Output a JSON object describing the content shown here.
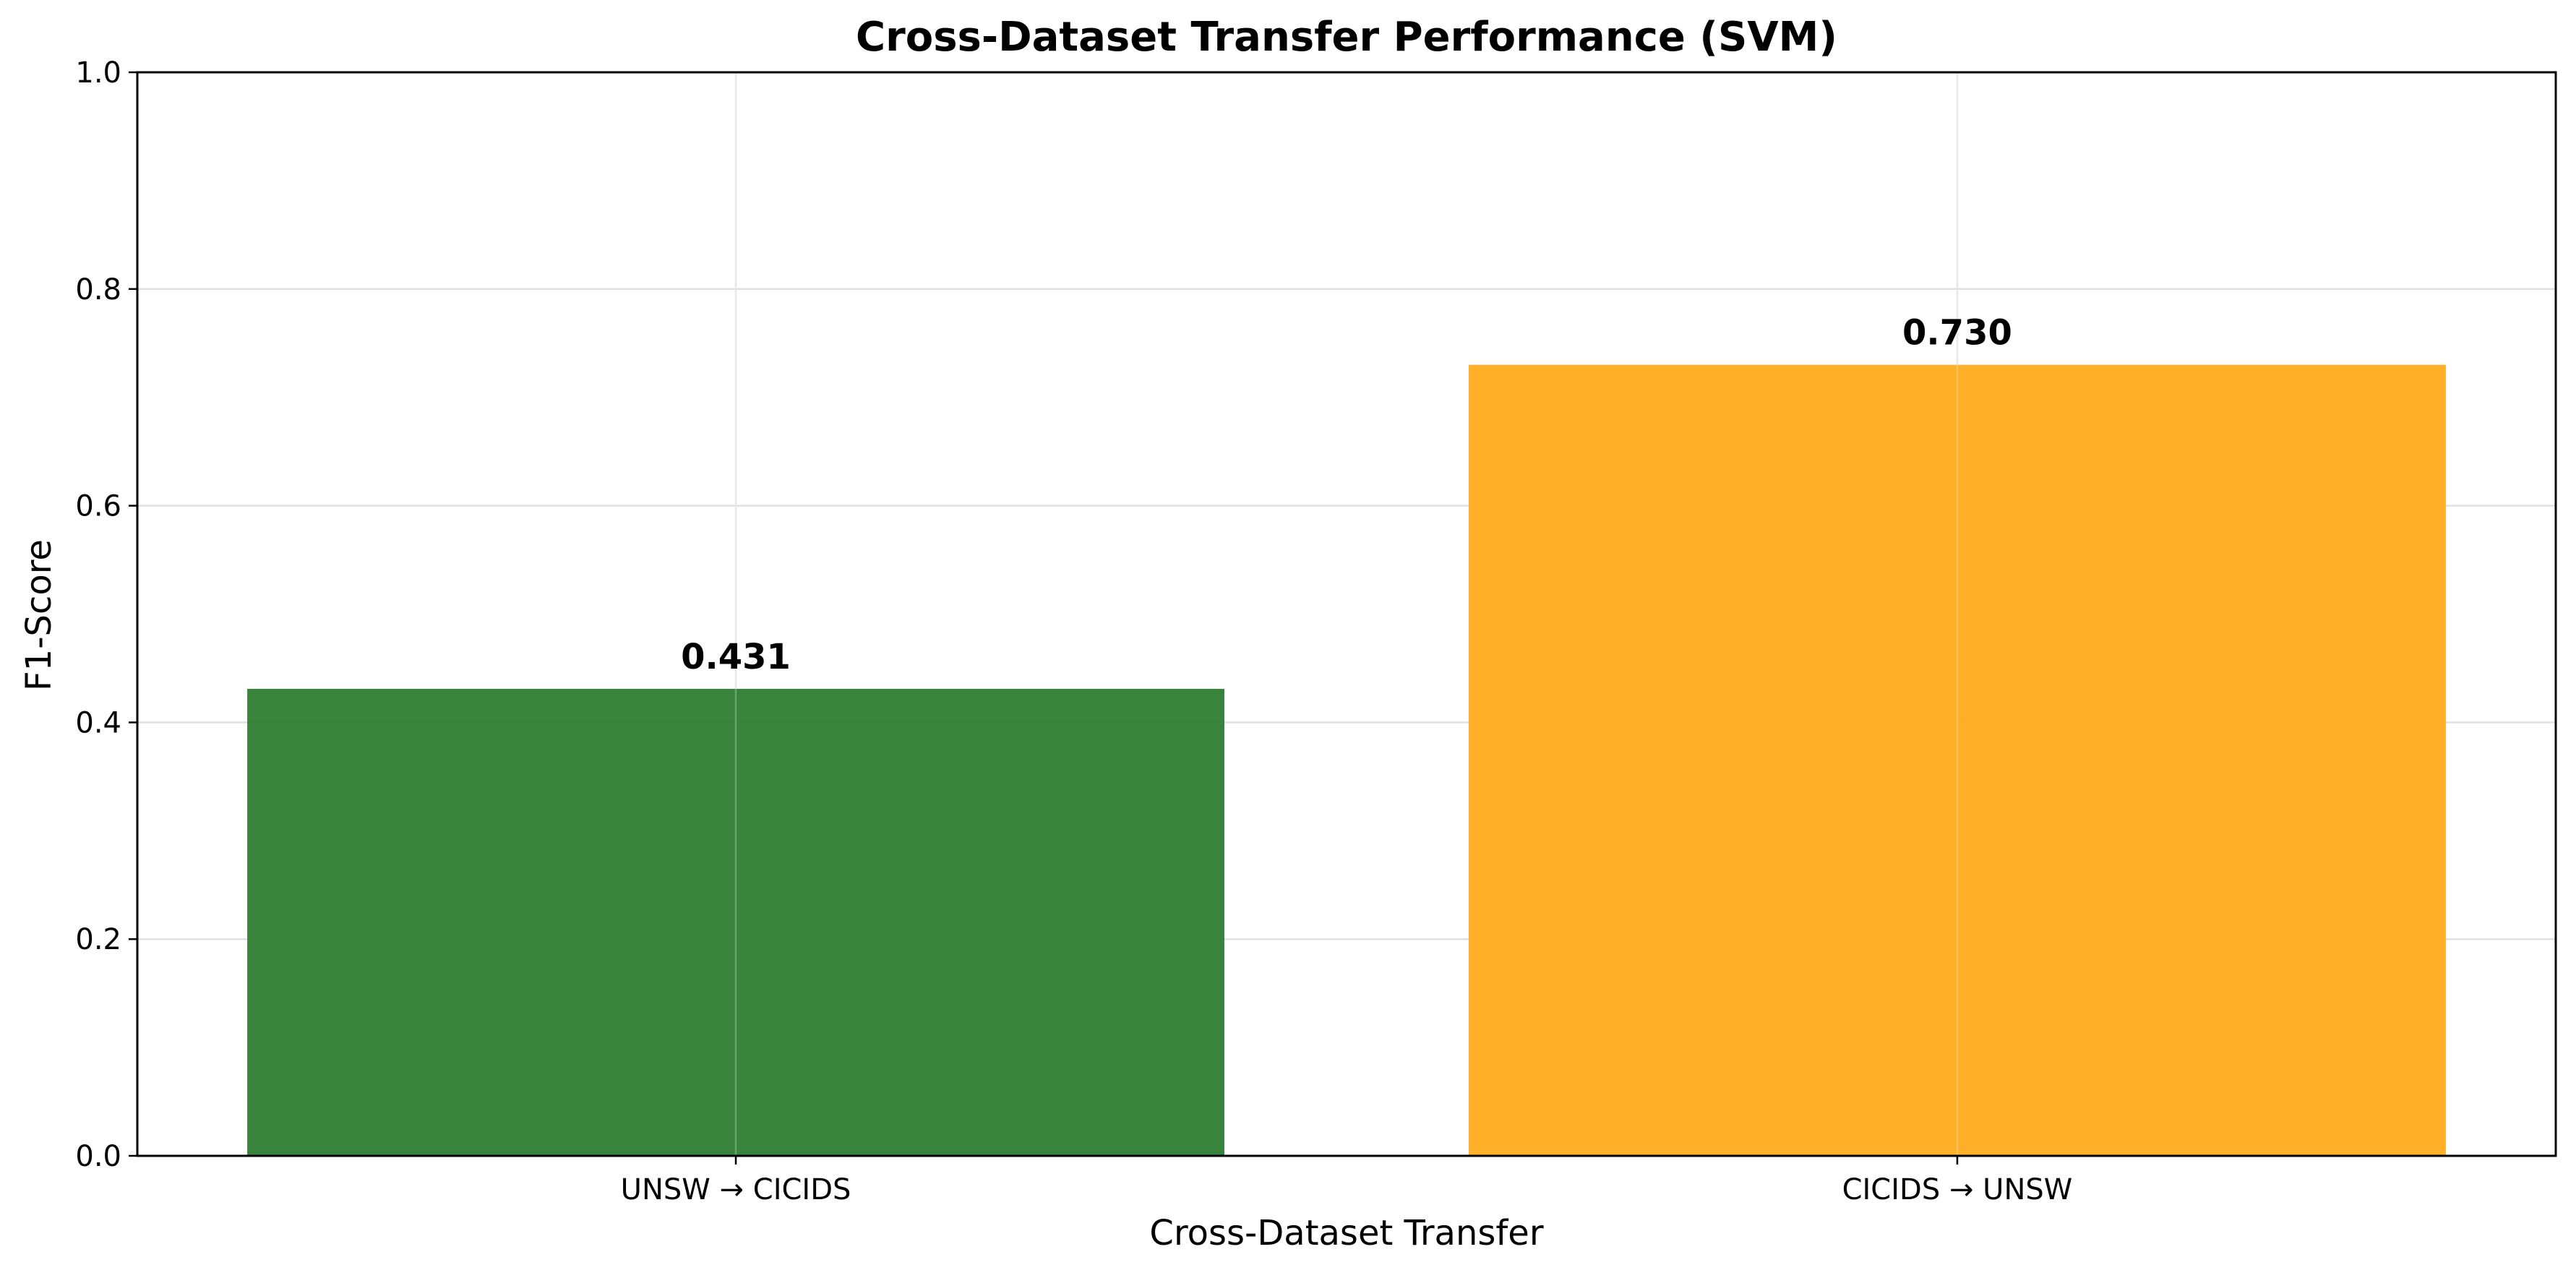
{
  "chart_data": {
    "type": "bar",
    "title": "Cross-Dataset Transfer Performance (SVM)",
    "xlabel": "Cross-Dataset Transfer",
    "ylabel": "F1-Score",
    "categories": [
      "UNSW → CICIDS",
      "CICIDS → UNSW"
    ],
    "values": [
      0.431,
      0.73
    ],
    "value_labels": [
      "0.431",
      "0.730"
    ],
    "bar_colors": [
      "#2e7d32",
      "#ffac1c"
    ],
    "ylim": [
      0,
      1.0
    ],
    "yticks": [
      0.0,
      0.2,
      0.4,
      0.6,
      0.8,
      1.0
    ],
    "ytick_labels": [
      "0.0",
      "0.2",
      "0.4",
      "0.6",
      "0.8",
      "1.0"
    ],
    "grid": true
  }
}
